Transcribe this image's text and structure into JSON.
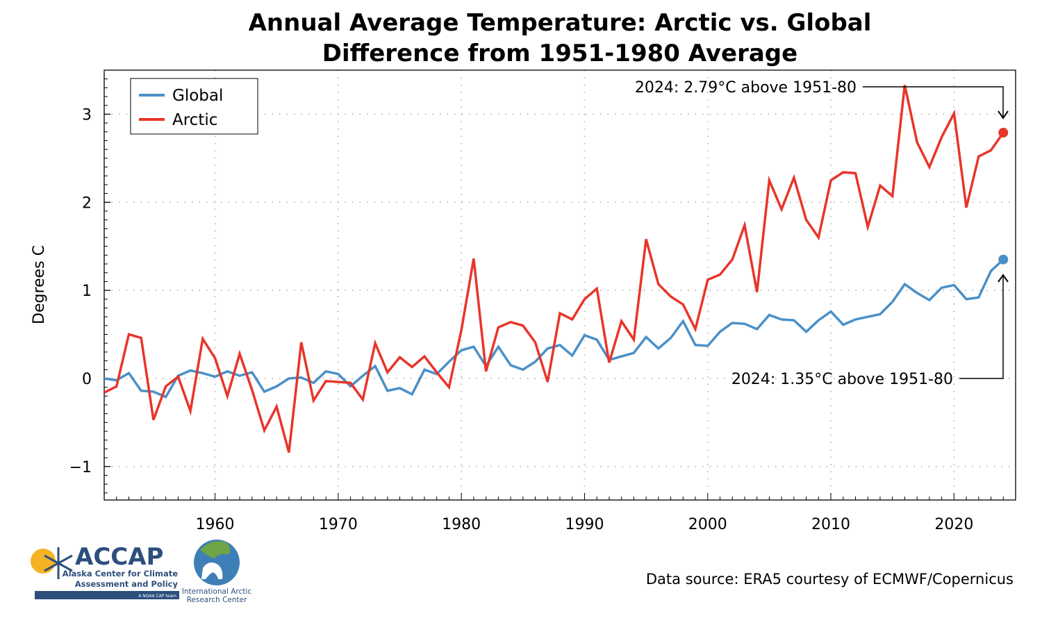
{
  "chart_data": {
    "type": "line",
    "title": "Annual Average Temperature: Arctic vs. Global",
    "subtitle": "Difference from 1951-1980 Average",
    "xlabel": "",
    "ylabel": "Degrees C",
    "xlim": [
      1951,
      2025
    ],
    "ylim": [
      -1.38,
      3.5
    ],
    "xticks": [
      1960,
      1970,
      1980,
      1990,
      2000,
      2010,
      2020
    ],
    "yticks": [
      -1,
      0,
      1,
      2,
      3
    ],
    "ytick_labels": [
      "−1",
      "0",
      "1",
      "2",
      "3"
    ],
    "grid": true,
    "legend_position": "top-left",
    "x": [
      1951,
      1952,
      1953,
      1954,
      1955,
      1956,
      1957,
      1958,
      1959,
      1960,
      1961,
      1962,
      1963,
      1964,
      1965,
      1966,
      1967,
      1968,
      1969,
      1970,
      1971,
      1972,
      1973,
      1974,
      1975,
      1976,
      1977,
      1978,
      1979,
      1980,
      1981,
      1982,
      1983,
      1984,
      1985,
      1986,
      1987,
      1988,
      1989,
      1990,
      1991,
      1992,
      1993,
      1994,
      1995,
      1996,
      1997,
      1998,
      1999,
      2000,
      2001,
      2002,
      2003,
      2004,
      2005,
      2006,
      2007,
      2008,
      2009,
      2010,
      2011,
      2012,
      2013,
      2014,
      2015,
      2016,
      2017,
      2018,
      2019,
      2020,
      2021,
      2022,
      2023,
      2024
    ],
    "series": [
      {
        "name": "Global",
        "color": "#4a90c8",
        "values": [
          0.0,
          -0.02,
          0.06,
          -0.14,
          -0.15,
          -0.21,
          0.03,
          0.09,
          0.06,
          0.02,
          0.08,
          0.03,
          0.07,
          -0.15,
          -0.09,
          0.0,
          0.01,
          -0.05,
          0.08,
          0.05,
          -0.09,
          0.03,
          0.14,
          -0.14,
          -0.11,
          -0.18,
          0.1,
          0.05,
          0.19,
          0.32,
          0.36,
          0.14,
          0.36,
          0.15,
          0.1,
          0.19,
          0.34,
          0.38,
          0.26,
          0.49,
          0.44,
          0.21,
          0.25,
          0.29,
          0.47,
          0.34,
          0.46,
          0.65,
          0.38,
          0.37,
          0.53,
          0.63,
          0.62,
          0.56,
          0.72,
          0.67,
          0.66,
          0.53,
          0.66,
          0.76,
          0.61,
          0.67,
          0.7,
          0.73,
          0.87,
          1.07,
          0.97,
          0.89,
          1.03,
          1.06,
          0.9,
          0.92,
          1.22,
          1.35
        ]
      },
      {
        "name": "Arctic",
        "color": "#e8352a",
        "values": [
          -0.16,
          -0.09,
          0.5,
          0.46,
          -0.47,
          -0.09,
          0.02,
          -0.37,
          0.45,
          0.23,
          -0.2,
          0.28,
          -0.13,
          -0.59,
          -0.32,
          -0.84,
          0.41,
          -0.25,
          -0.03,
          -0.04,
          -0.05,
          -0.24,
          0.4,
          0.07,
          0.24,
          0.13,
          0.25,
          0.07,
          -0.1,
          0.55,
          1.36,
          0.08,
          0.58,
          0.64,
          0.6,
          0.41,
          -0.04,
          0.74,
          0.67,
          0.9,
          1.02,
          0.18,
          0.65,
          0.44,
          1.58,
          1.07,
          0.93,
          0.84,
          0.56,
          1.12,
          1.18,
          1.35,
          1.74,
          0.98,
          2.25,
          1.92,
          2.28,
          1.8,
          1.6,
          2.25,
          2.34,
          2.33,
          1.72,
          2.19,
          2.07,
          3.33,
          2.68,
          2.4,
          2.74,
          3.01,
          1.94,
          2.52,
          2.59,
          2.79
        ]
      }
    ],
    "annotations": [
      {
        "text": "2024: 2.79°C above 1951-80",
        "series": "Arctic",
        "x": 2024,
        "y": 2.79
      },
      {
        "text": "2024: 1.35°C above 1951-80",
        "series": "Global",
        "x": 2024,
        "y": 1.35
      }
    ]
  },
  "footer": {
    "data_source": "Data source: ERA5 courtesy of ECMWF/Copernicus"
  },
  "logos": {
    "accap": {
      "name": "ACCAP",
      "line1": "Alaska Center for Climate",
      "line2": "Assessment and Policy",
      "tag": "A NOAA CAP team"
    },
    "iarc": {
      "line1": "International Arctic",
      "line2": "Research Center"
    }
  }
}
